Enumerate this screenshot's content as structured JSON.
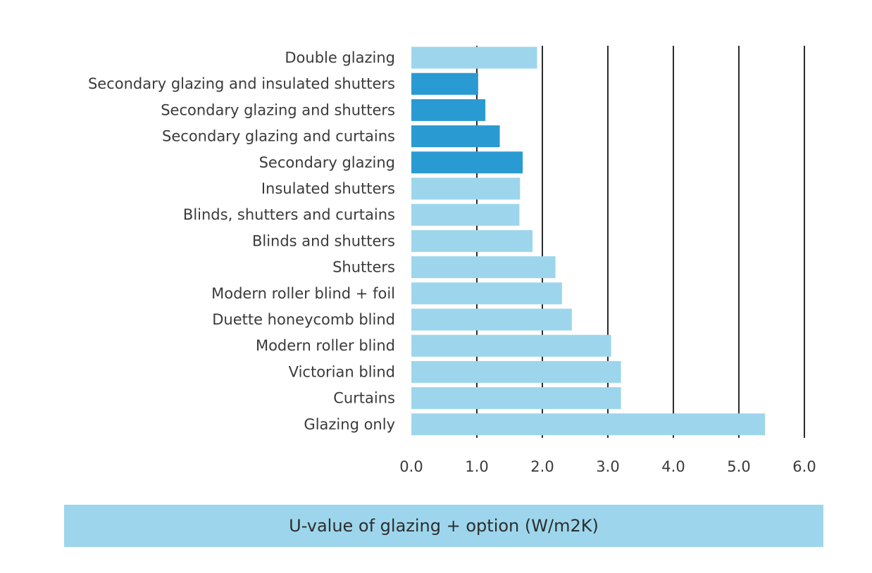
{
  "chart_data": {
    "type": "bar",
    "orientation": "horizontal",
    "categories": [
      "Double glazing",
      "Secondary glazing and insulated shutters",
      "Secondary glazing and shutters",
      "Secondary glazing and curtains",
      "Secondary glazing",
      "Insulated shutters",
      "Blinds, shutters and curtains",
      "Blinds and shutters",
      "Shutters",
      "Modern roller blind + foil",
      "Duette honeycomb blind",
      "Modern roller blind",
      "Victorian blind",
      "Curtains",
      "Glazing only"
    ],
    "values": [
      1.92,
      1.02,
      1.13,
      1.35,
      1.7,
      1.66,
      1.65,
      1.85,
      2.2,
      2.3,
      2.45,
      3.05,
      3.2,
      3.2,
      5.4
    ],
    "highlighted": [
      false,
      true,
      true,
      true,
      true,
      false,
      false,
      false,
      false,
      false,
      false,
      false,
      false,
      false,
      false
    ],
    "xlim": [
      0,
      6
    ],
    "ticks": [
      0,
      1,
      2,
      3,
      4,
      5,
      6
    ],
    "tick_labels": [
      "0.0",
      "1.0",
      "2.0",
      "3.0",
      "4.0",
      "5.0",
      "6.0"
    ],
    "xlabel": "U-value of glazing + option (W/m2K)",
    "ylabel": "",
    "title": "",
    "grid": true,
    "colors": {
      "bar": "#9dd6ec",
      "bar_highlight": "#2a9ad2",
      "grid": "#2b2b2b",
      "axis_band": "#9dd6ec"
    }
  }
}
